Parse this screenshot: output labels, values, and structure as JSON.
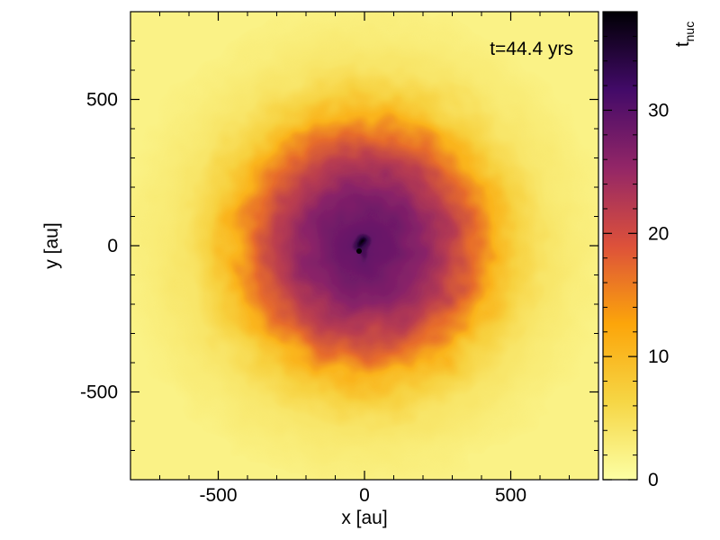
{
  "chart_data": {
    "type": "heatmap",
    "annotation": "t=44.4 yrs",
    "xlabel": "x [au]",
    "ylabel": "y [au]",
    "xlim": [
      -800,
      800
    ],
    "ylim": [
      -800,
      800
    ],
    "xticks": [
      {
        "value": -500,
        "label": "-500"
      },
      {
        "value": 0,
        "label": "0"
      },
      {
        "value": 500,
        "label": "500"
      }
    ],
    "yticks": [
      {
        "value": 500,
        "label": "500"
      },
      {
        "value": 0,
        "label": "0"
      },
      {
        "value": -500,
        "label": "-500"
      }
    ],
    "colorbar": {
      "label_main": "t",
      "label_sub": "nuc",
      "range": [
        0,
        38
      ],
      "ticks": [
        {
          "value": 0,
          "label": "0"
        },
        {
          "value": 10,
          "label": "10"
        },
        {
          "value": 20,
          "label": "20"
        },
        {
          "value": 30,
          "label": "30"
        }
      ],
      "colormap": [
        "#fcffa4",
        "#f6d645",
        "#fca50a",
        "#dd513a",
        "#932667",
        "#420a68",
        "#000004"
      ]
    },
    "field": {
      "center": [
        0,
        0
      ],
      "profile": [
        {
          "r": 0,
          "value": 38
        },
        {
          "r": 15,
          "value": 34
        },
        {
          "r": 40,
          "value": 29
        },
        {
          "r": 120,
          "value": 28
        },
        {
          "r": 200,
          "value": 26
        },
        {
          "r": 300,
          "value": 22
        },
        {
          "r": 380,
          "value": 17
        },
        {
          "r": 450,
          "value": 11
        },
        {
          "r": 520,
          "value": 7
        },
        {
          "r": 620,
          "value": 4
        },
        {
          "r": 720,
          "value": 3
        },
        {
          "r": 850,
          "value": 2
        }
      ]
    }
  }
}
